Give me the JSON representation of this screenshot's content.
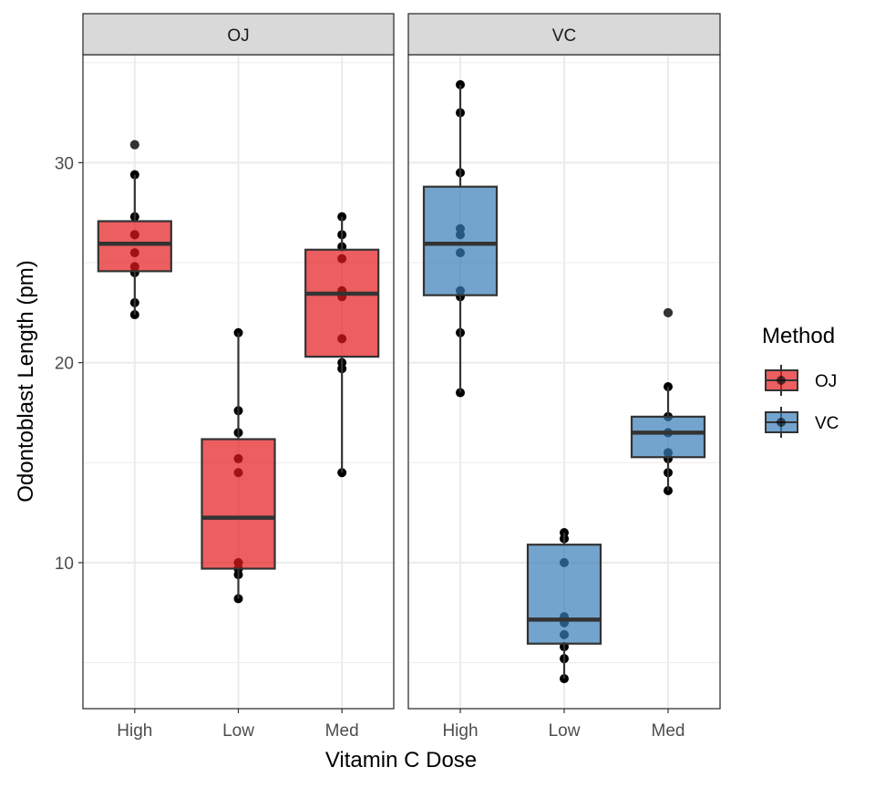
{
  "chart_data": {
    "type": "boxplot",
    "xlabel": "Vitamin C Dose",
    "ylabel": "Odontoblast Length (pm)",
    "ylim": [
      2.7,
      35.4
    ],
    "yticks": [
      10,
      20,
      30
    ],
    "grid": true,
    "categories": [
      "High",
      "Low",
      "Med"
    ],
    "facets": [
      "OJ",
      "VC"
    ],
    "legend": {
      "title": "Method",
      "entries": [
        "OJ",
        "VC"
      ],
      "position": "right"
    },
    "colors": {
      "OJ": "#E41A1C",
      "VC": "#377EB8"
    },
    "series": [
      {
        "name": "OJ",
        "values": {
          "High": [
            25.5,
            26.4,
            22.4,
            24.5,
            24.8,
            30.9,
            26.4,
            27.3,
            29.4,
            23.0
          ],
          "Low": [
            15.2,
            21.5,
            17.6,
            9.7,
            14.5,
            10.0,
            8.2,
            9.4,
            16.5,
            9.7
          ],
          "Med": [
            19.7,
            23.3,
            23.6,
            26.4,
            20.0,
            25.2,
            25.8,
            21.2,
            14.5,
            27.3
          ]
        }
      },
      {
        "name": "VC",
        "values": {
          "High": [
            23.6,
            18.5,
            33.9,
            25.5,
            26.4,
            32.5,
            26.7,
            21.5,
            23.3,
            29.5
          ],
          "Low": [
            4.2,
            11.5,
            7.3,
            5.8,
            6.4,
            10.0,
            11.2,
            11.2,
            5.2,
            7.0
          ],
          "Med": [
            16.5,
            16.5,
            15.2,
            17.3,
            22.5,
            17.3,
            13.6,
            14.5,
            18.8,
            15.5
          ]
        }
      }
    ]
  }
}
